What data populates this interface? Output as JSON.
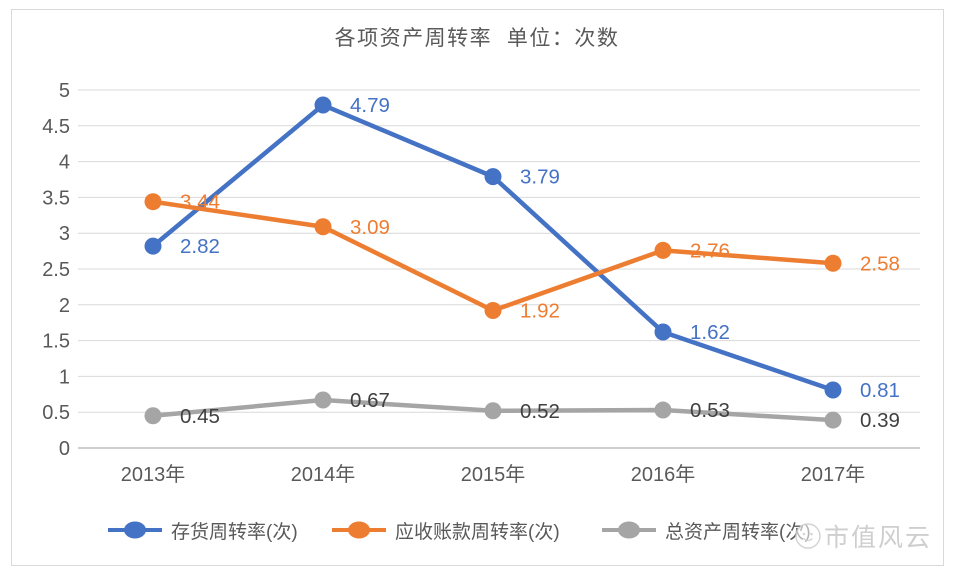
{
  "chart": {
    "title": "各项资产周转率  单位：次数"
  },
  "chart_data": {
    "type": "line",
    "title": "各项资产周转率  单位：次数",
    "categories": [
      "2013年",
      "2014年",
      "2015年",
      "2016年",
      "2017年"
    ],
    "series": [
      {
        "name": "存货周转率(次)",
        "color": "#4472C4",
        "label_color": "#4472C4",
        "values": [
          2.82,
          4.79,
          3.79,
          1.62,
          0.81
        ]
      },
      {
        "name": "应收账款周转率(次)",
        "color": "#ED7D31",
        "label_color": "#ED7D31",
        "values": [
          3.44,
          3.09,
          1.92,
          2.76,
          2.58
        ]
      },
      {
        "name": "总资产周转率(次)",
        "color": "#A5A5A5",
        "label_color": "#404040",
        "values": [
          0.45,
          0.67,
          0.52,
          0.53,
          0.39
        ]
      }
    ],
    "xlabel": "",
    "ylabel": "",
    "ylim": [
      0,
      5
    ],
    "ytick_step": 0.5,
    "grid": true,
    "data_labels": true,
    "legend_position": "bottom"
  },
  "colors": {
    "grid": "#d9d9d9",
    "axis": "#bfbfbf",
    "axis_text": "#595959",
    "border": "#d9d9d9",
    "watermark": "#c9c9c9"
  },
  "watermark": {
    "text": "市值风云"
  }
}
